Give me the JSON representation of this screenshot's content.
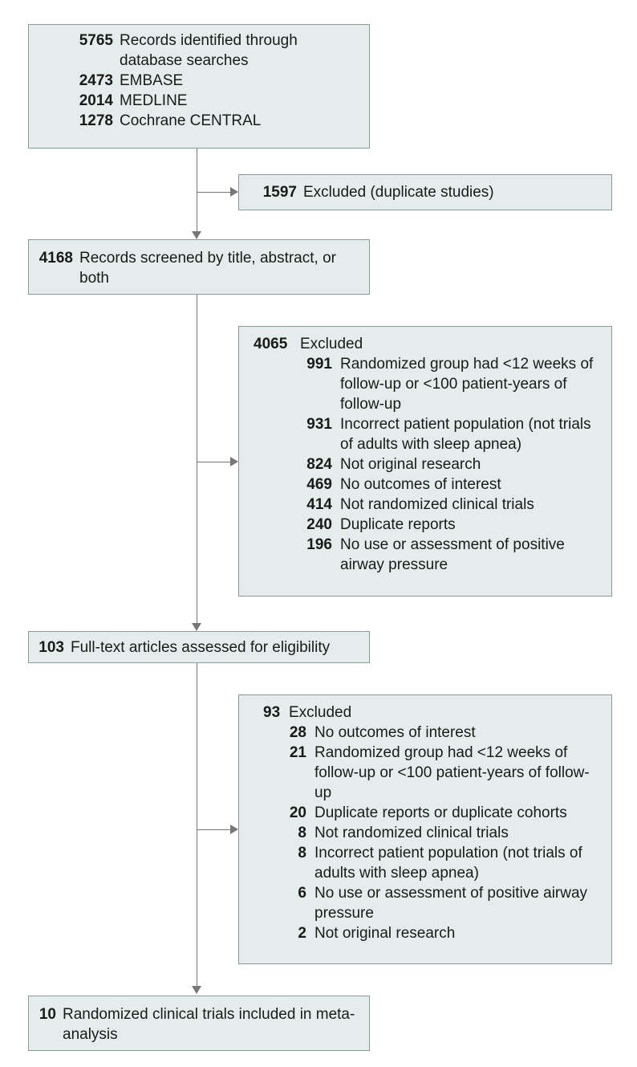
{
  "identified": {
    "total": "5765",
    "label": "Records identified through database searches",
    "sources": [
      {
        "n": "2473",
        "label": "EMBASE"
      },
      {
        "n": "2014",
        "label": "MEDLINE"
      },
      {
        "n": "1278",
        "label": "Cochrane CENTRAL"
      }
    ]
  },
  "duplicates": {
    "n": "1597",
    "label": "Excluded (duplicate studies)"
  },
  "screened": {
    "n": "4168",
    "label": "Records screened by title, abstract, or both"
  },
  "excluded1": {
    "n": "4065",
    "label": "Excluded",
    "items": [
      {
        "n": "991",
        "label": "Randomized group had <12 weeks of follow-up or <100 patient-years of follow-up"
      },
      {
        "n": "931",
        "label": "Incorrect patient population (not trials of adults with sleep apnea)"
      },
      {
        "n": "824",
        "label": "Not original research"
      },
      {
        "n": "469",
        "label": "No outcomes of interest"
      },
      {
        "n": "414",
        "label": "Not randomized clinical trials"
      },
      {
        "n": "240",
        "label": "Duplicate reports"
      },
      {
        "n": "196",
        "label": "No use or assessment of positive airway pressure"
      }
    ]
  },
  "fulltext": {
    "n": "103",
    "label": "Full-text articles assessed for eligibility"
  },
  "excluded2": {
    "n": "93",
    "label": "Excluded",
    "items": [
      {
        "n": "28",
        "label": "No outcomes of interest"
      },
      {
        "n": "21",
        "label": "Randomized group had <12 weeks of follow-up or <100 patient-years of follow-up"
      },
      {
        "n": "20",
        "label": "Duplicate reports or duplicate cohorts"
      },
      {
        "n": "8",
        "label": "Not randomized clinical trials"
      },
      {
        "n": "8",
        "label": "Incorrect patient population (not trials of adults with sleep apnea)"
      },
      {
        "n": "6",
        "label": "No use or assessment of positive airway pressure"
      },
      {
        "n": "2",
        "label": "Not original research"
      }
    ]
  },
  "included": {
    "n": "10",
    "label": "Randomized clinical trials included in meta-analysis"
  }
}
